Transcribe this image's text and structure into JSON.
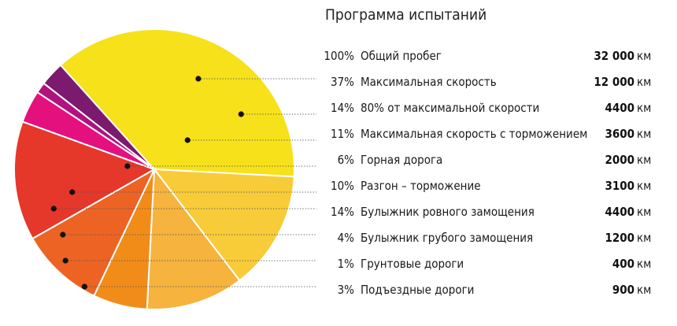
{
  "chart_data": {
    "type": "pie",
    "title": "Программа испытаний",
    "total": {
      "pct": "100%",
      "label": "Общий пробег",
      "value": "32 000",
      "unit": "км"
    },
    "slices": [
      {
        "pct": "37%",
        "label": "Максимальная скорость",
        "value": "12 000",
        "unit": "км",
        "color": "#F6E11A"
      },
      {
        "pct": "14%",
        "label": "80% от максимальной скорости",
        "value": "4400",
        "unit": "км",
        "color": "#F8CB38"
      },
      {
        "pct": "11%",
        "label": "Максимальная скорость с торможением",
        "value": "3600",
        "unit": "км",
        "color": "#F6B33D"
      },
      {
        "pct": "6%",
        "label": "Горная дорога",
        "value": "2000",
        "unit": "км",
        "color": "#F28C18"
      },
      {
        "pct": "10%",
        "label": "Разгон – торможение",
        "value": "3100",
        "unit": "км",
        "color": "#EC6324"
      },
      {
        "pct": "14%",
        "label": "Булыжник ровного замощения",
        "value": "4400",
        "unit": "км",
        "color": "#E5372A"
      },
      {
        "pct": "4%",
        "label": "Булыжник грубого замощения",
        "value": "1200",
        "unit": "км",
        "color": "#E4107E"
      },
      {
        "pct": "1%",
        "label": "Грунтовые дороги",
        "value": "400",
        "unit": "км",
        "color": "#B01280"
      },
      {
        "pct": "3%",
        "label": "Подъездные дороги",
        "value": "900",
        "unit": "км",
        "color": "#7B1A6E"
      }
    ]
  }
}
